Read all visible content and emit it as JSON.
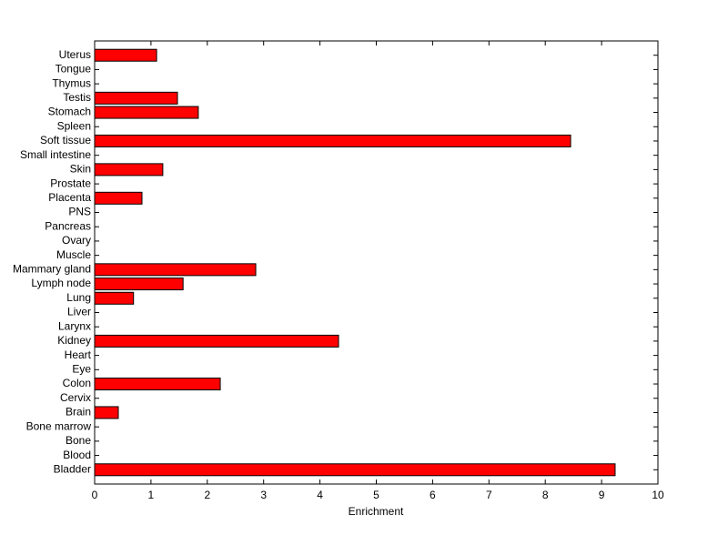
{
  "chart_data": {
    "type": "barh",
    "x_label": "Enrichment",
    "categories": [
      "Bladder",
      "Blood",
      "Bone",
      "Bone marrow",
      "Brain",
      "Cervix",
      "Colon",
      "Eye",
      "Heart",
      "Kidney",
      "Larynx",
      "Liver",
      "Lung",
      "Lymph node",
      "Mammary gland",
      "Muscle",
      "Ovary",
      "Pancreas",
      "PNS",
      "Placenta",
      "Prostate",
      "Skin",
      "Small intestine",
      "Soft tissue",
      "Spleen",
      "Stomach",
      "Testis",
      "Thymus",
      "Tongue",
      "Uterus"
    ],
    "values": [
      9.24,
      0,
      0,
      0,
      0.42,
      0,
      2.23,
      0,
      0,
      4.33,
      0,
      0,
      0.69,
      1.57,
      2.86,
      0,
      0,
      0,
      0,
      0.84,
      0,
      1.21,
      0,
      8.45,
      0,
      1.84,
      1.47,
      0,
      0,
      1.1
    ],
    "color": "#ff0000",
    "xlim": [
      0,
      10
    ],
    "xticks": [
      0,
      1,
      2,
      3,
      4,
      5,
      6,
      7,
      8,
      9,
      10
    ]
  }
}
